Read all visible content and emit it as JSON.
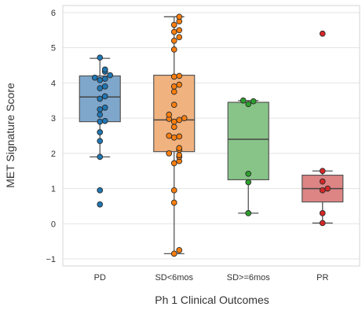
{
  "chart_data": {
    "type": "box",
    "title": "",
    "xlabel": "Ph 1 Clinical Outcomes",
    "ylabel": "MET Signature Score",
    "ylim": [
      -1.2,
      6.2
    ],
    "yticks": [
      -1,
      0,
      1,
      2,
      3,
      4,
      5,
      6
    ],
    "ytick_labels": [
      "−1",
      "0",
      "1",
      "2",
      "3",
      "4",
      "5",
      "6"
    ],
    "grid": "horizontal",
    "categories": [
      "PD",
      "SD<6mos",
      "SD>=6mos",
      "PR"
    ],
    "colors": {
      "PD": {
        "box": "#7fa7cc",
        "point": "#1f77b4"
      },
      "SD<6mos": {
        "box": "#f0b27f",
        "point": "#ff7f0e"
      },
      "SD>=6mos": {
        "box": "#88c488",
        "point": "#2ca02c"
      },
      "PR": {
        "box": "#dd8585",
        "point": "#d62728"
      }
    },
    "boxes": [
      {
        "category": "PD",
        "q1": 2.9,
        "median": 3.6,
        "q3": 4.2,
        "whisker_low": 1.9,
        "whisker_high": 4.7,
        "outliers": [
          0.95,
          0.55
        ]
      },
      {
        "category": "SD<6mos",
        "q1": 2.05,
        "median": 2.95,
        "q3": 4.22,
        "whisker_low": -0.85,
        "whisker_high": 5.88,
        "outliers": []
      },
      {
        "category": "SD>=6mos",
        "q1": 1.25,
        "median": 2.4,
        "q3": 3.45,
        "whisker_low": 0.3,
        "whisker_high": 3.5,
        "outliers": []
      },
      {
        "category": "PR",
        "q1": 0.62,
        "median": 1.0,
        "q3": 1.38,
        "whisker_low": 0.02,
        "whisker_high": 1.5,
        "outliers": [
          5.4
        ]
      }
    ],
    "points": {
      "PD": [
        4.72,
        4.38,
        4.32,
        4.22,
        4.15,
        4.12,
        4.08,
        3.9,
        3.85,
        3.62,
        3.55,
        3.3,
        3.25,
        3.1,
        2.92,
        2.9,
        2.6,
        2.35,
        1.9,
        0.95,
        0.55
      ],
      "SD<6mos": [
        5.88,
        5.75,
        5.65,
        5.5,
        5.45,
        5.3,
        5.2,
        4.95,
        4.2,
        4.18,
        3.95,
        3.9,
        3.75,
        3.38,
        3.1,
        3.0,
        2.98,
        2.95,
        2.9,
        2.75,
        2.5,
        2.48,
        2.45,
        2.15,
        2.1,
        2.0,
        1.95,
        1.9,
        1.78,
        1.72,
        0.95,
        0.6,
        -0.75,
        -0.85
      ],
      "SD>=6mos": [
        3.5,
        3.48,
        3.4,
        1.42,
        1.18,
        0.3
      ],
      "PR": [
        5.4,
        1.5,
        1.2,
        1.0,
        0.95,
        0.3,
        0.02
      ]
    }
  }
}
